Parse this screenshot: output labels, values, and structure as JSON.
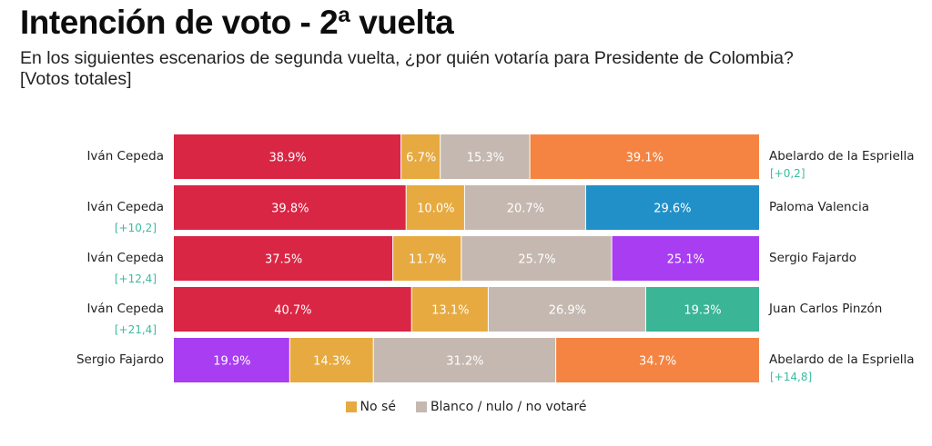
{
  "header": {
    "title": "Intención de voto - 2ª vuelta",
    "subtitle_line1": "En los siguientes escenarios de segunda vuelta, ¿por quién votaría para Presidente de Colombia?",
    "subtitle_line2": "[Votos totales]"
  },
  "colors": {
    "cepeda": "#d92644",
    "no_se": "#e6aa40",
    "blanco": "#c5b8b0",
    "abelardo": "#f58442",
    "paloma": "#2290c8",
    "fajardo": "#a83df2",
    "pinzon": "#3ab596",
    "delta": "#3bbba0"
  },
  "chart_data": {
    "type": "bar",
    "orientation": "horizontal",
    "stacked": true,
    "unit": "%",
    "xlim": [
      0,
      100
    ],
    "title": "Intención de voto - 2ª vuelta",
    "series_order": [
      "left_candidate",
      "No sé",
      "Blanco / nulo / no votaré",
      "right_candidate"
    ],
    "rows": [
      {
        "left": {
          "name": "Iván Cepeda",
          "color_key": "cepeda",
          "value": 38.9,
          "label": "38.9%",
          "delta": ""
        },
        "no_se": {
          "value": 6.7,
          "label": "6.7%"
        },
        "blanco": {
          "value": 15.3,
          "label": "15.3%"
        },
        "right": {
          "name": "Abelardo de la Espriella",
          "color_key": "abelardo",
          "value": 39.1,
          "label": "39.1%",
          "delta": "[+0,2]"
        }
      },
      {
        "left": {
          "name": "Iván Cepeda",
          "color_key": "cepeda",
          "value": 39.8,
          "label": "39.8%",
          "delta": "[+10,2]"
        },
        "no_se": {
          "value": 10.0,
          "label": "10.0%"
        },
        "blanco": {
          "value": 20.7,
          "label": "20.7%"
        },
        "right": {
          "name": "Paloma Valencia",
          "color_key": "paloma",
          "value": 29.6,
          "label": "29.6%",
          "delta": ""
        }
      },
      {
        "left": {
          "name": "Iván Cepeda",
          "color_key": "cepeda",
          "value": 37.5,
          "label": "37.5%",
          "delta": "[+12,4]"
        },
        "no_se": {
          "value": 11.7,
          "label": "11.7%"
        },
        "blanco": {
          "value": 25.7,
          "label": "25.7%"
        },
        "right": {
          "name": "Sergio Fajardo",
          "color_key": "fajardo",
          "value": 25.1,
          "label": "25.1%",
          "delta": ""
        }
      },
      {
        "left": {
          "name": "Iván Cepeda",
          "color_key": "cepeda",
          "value": 40.7,
          "label": "40.7%",
          "delta": "[+21,4]"
        },
        "no_se": {
          "value": 13.1,
          "label": "13.1%"
        },
        "blanco": {
          "value": 26.9,
          "label": "26.9%"
        },
        "right": {
          "name": "Juan Carlos Pinzón",
          "color_key": "pinzon",
          "value": 19.3,
          "label": "19.3%",
          "delta": ""
        }
      },
      {
        "left": {
          "name": "Sergio Fajardo",
          "color_key": "fajardo",
          "value": 19.9,
          "label": "19.9%",
          "delta": ""
        },
        "no_se": {
          "value": 14.3,
          "label": "14.3%"
        },
        "blanco": {
          "value": 31.2,
          "label": "31.2%"
        },
        "right": {
          "name": "Abelardo de la Espriella",
          "color_key": "abelardo",
          "value": 34.7,
          "label": "34.7%",
          "delta": "[+14,8]"
        }
      }
    ],
    "legend": {
      "placement": "bottom-center",
      "items": [
        {
          "label": "No sé",
          "color_key": "no_se"
        },
        {
          "label": "Blanco / nulo / no votaré",
          "color_key": "blanco"
        }
      ]
    }
  }
}
